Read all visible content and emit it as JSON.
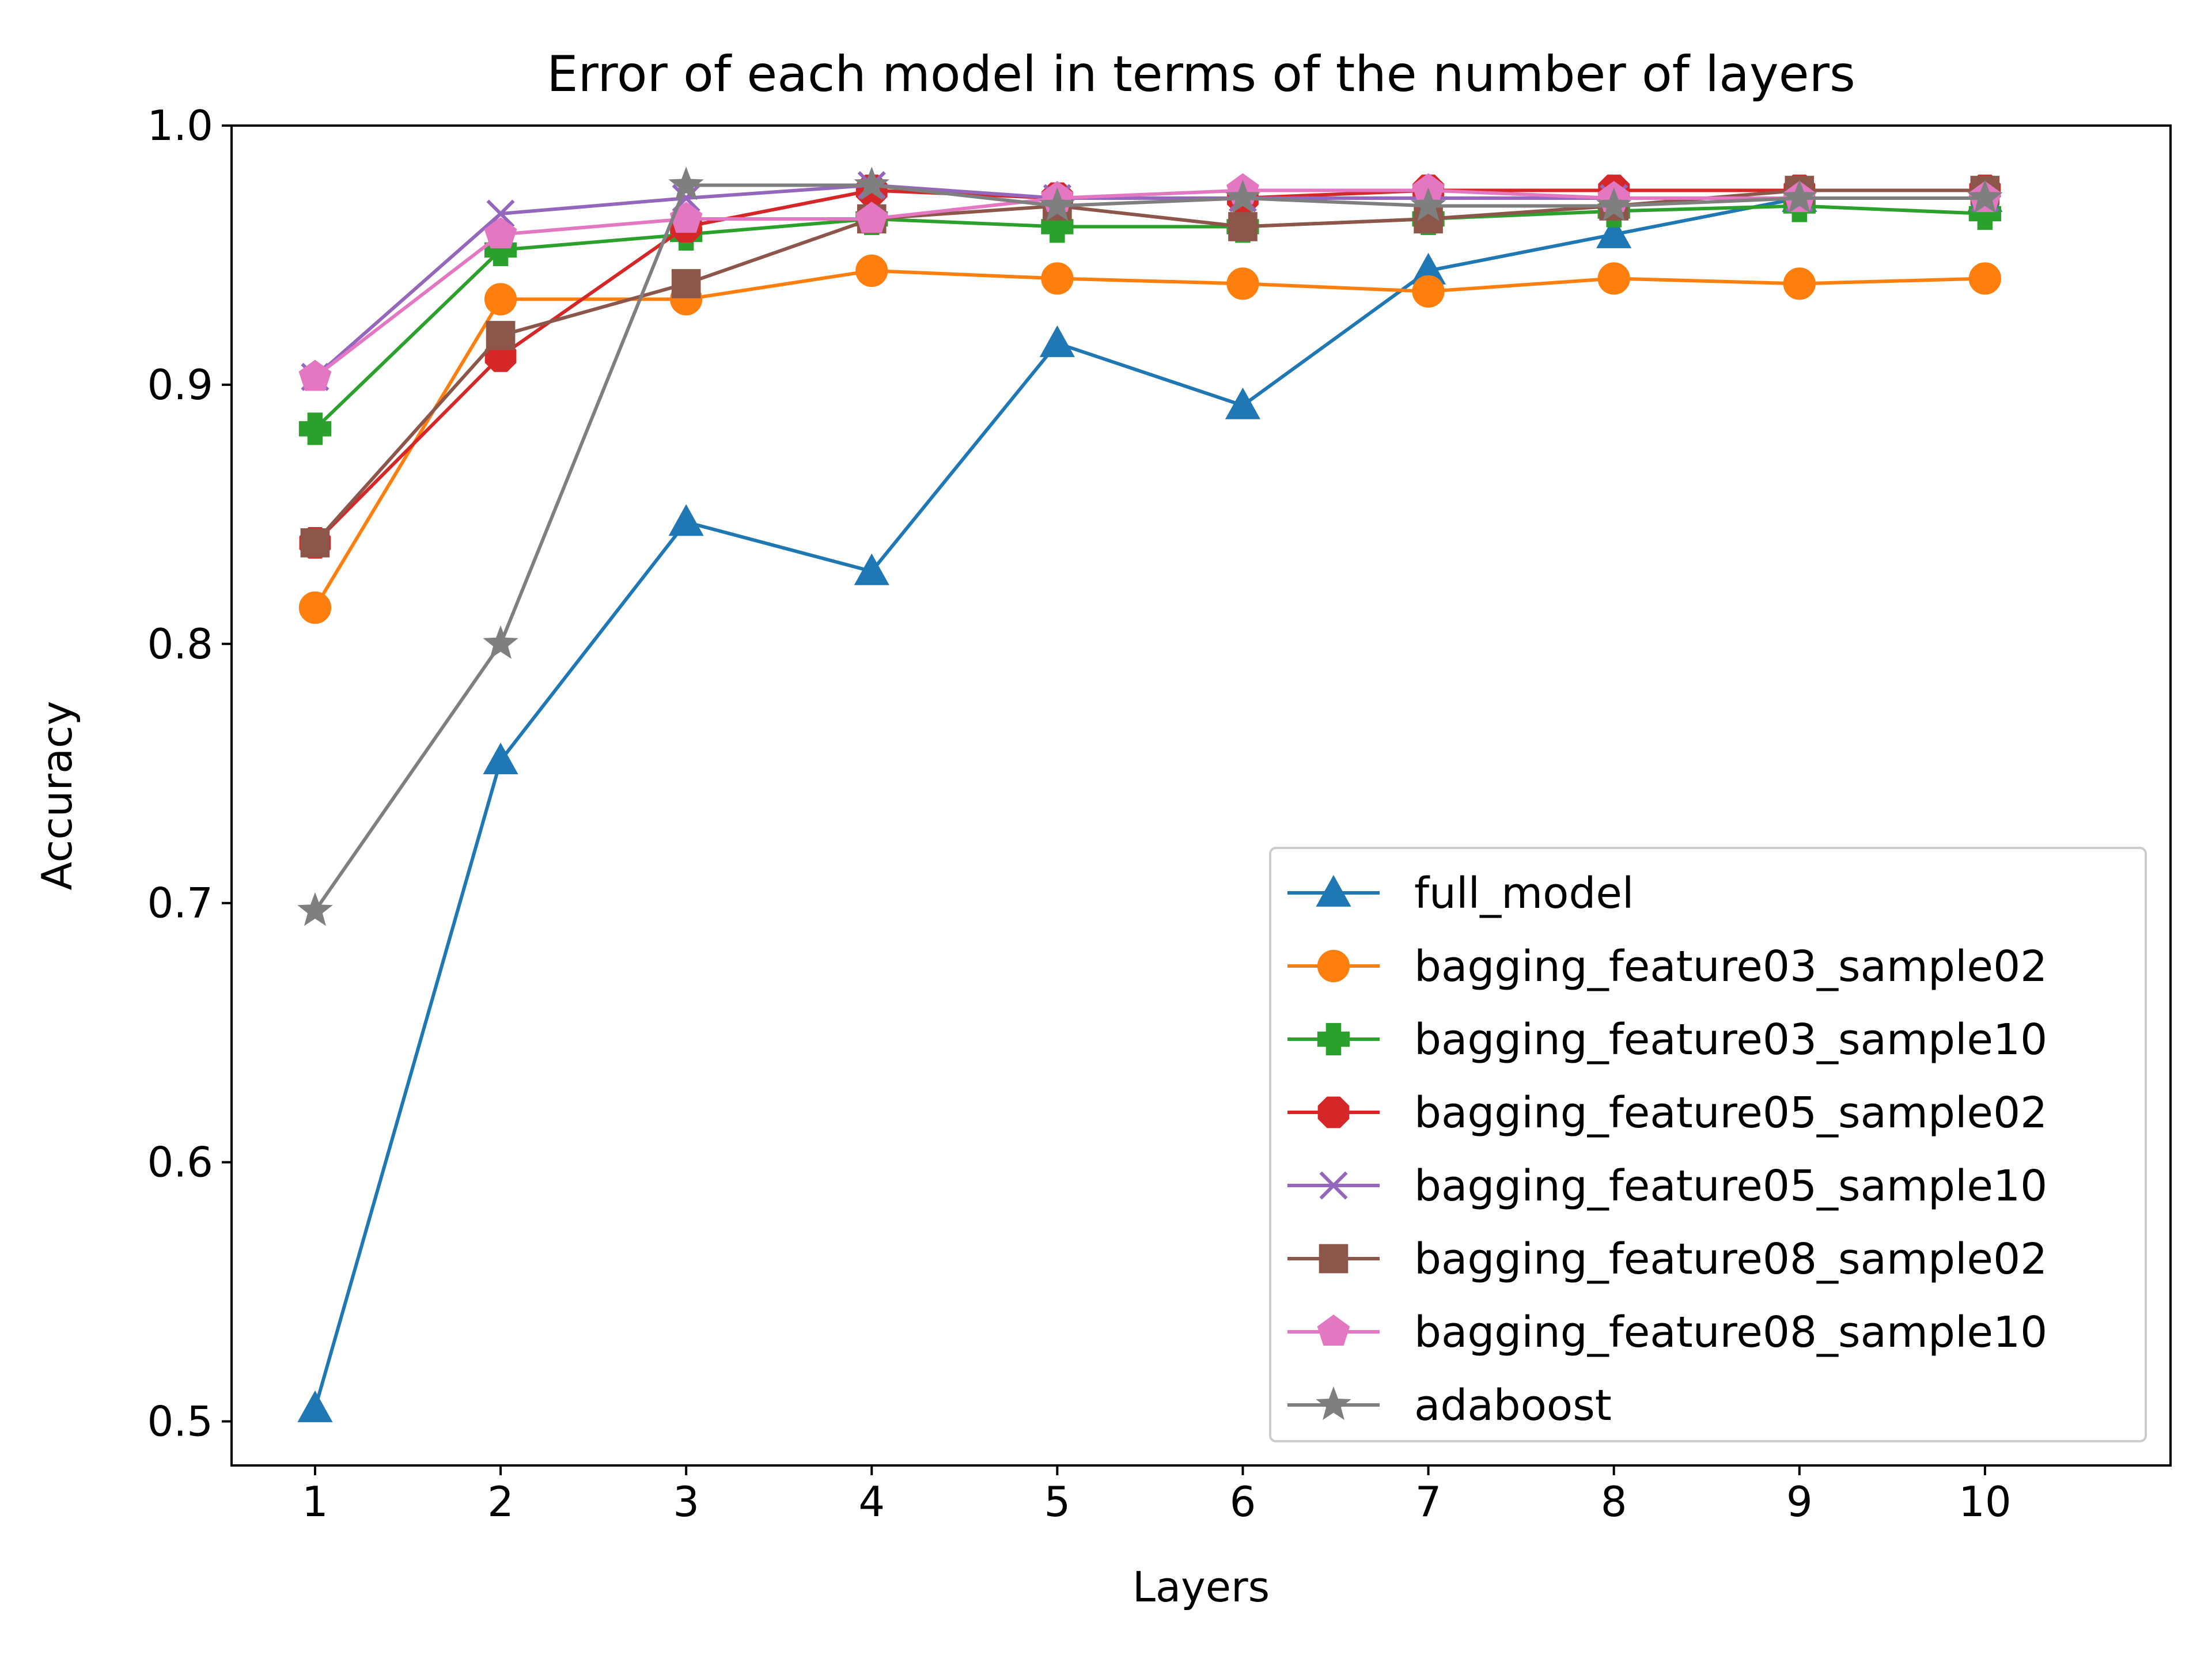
{
  "chart_data": {
    "type": "line",
    "title": "Error of each model in terms of the number of layers",
    "xlabel": "Layers",
    "ylabel": "Accuracy",
    "x": [
      1,
      2,
      3,
      4,
      5,
      6,
      7,
      8,
      9,
      10
    ],
    "xlim": [
      0.55,
      11.0
    ],
    "ylim": [
      0.483,
      1.0
    ],
    "xticks": [
      "1",
      "2",
      "3",
      "4",
      "5",
      "6",
      "7",
      "8",
      "9",
      "10"
    ],
    "yticks": [
      "0.5",
      "0.6",
      "0.7",
      "0.8",
      "0.9",
      "1.0"
    ],
    "grid": false,
    "legend_position": "lower-right",
    "series": [
      {
        "name": "full_model",
        "color": "#1f77b4",
        "marker": "triangle-up",
        "values": [
          0.505,
          0.755,
          0.847,
          0.828,
          0.916,
          0.892,
          0.944,
          0.958,
          0.972,
          0.972
        ]
      },
      {
        "name": "bagging_feature03_sample02",
        "color": "#ff7f0e",
        "marker": "circle",
        "values": [
          0.814,
          0.933,
          0.933,
          0.944,
          0.941,
          0.939,
          0.936,
          0.941,
          0.939,
          0.941
        ]
      },
      {
        "name": "bagging_feature03_sample10",
        "color": "#2ca02c",
        "marker": "plus-filled",
        "values": [
          0.883,
          0.952,
          0.958,
          0.964,
          0.961,
          0.961,
          0.964,
          0.967,
          0.969,
          0.966
        ]
      },
      {
        "name": "bagging_feature05_sample02",
        "color": "#d62728",
        "marker": "octagon",
        "values": [
          0.839,
          0.911,
          0.961,
          0.975,
          0.972,
          0.972,
          0.975,
          0.975,
          0.975,
          0.975
        ]
      },
      {
        "name": "bagging_feature05_sample10",
        "color": "#9467bd",
        "marker": "x",
        "values": [
          0.903,
          0.966,
          0.972,
          0.977,
          0.972,
          0.972,
          0.972,
          0.972,
          0.972,
          0.972
        ]
      },
      {
        "name": "bagging_feature08_sample02",
        "color": "#8c564b",
        "marker": "square",
        "values": [
          0.839,
          0.919,
          0.939,
          0.964,
          0.969,
          0.961,
          0.964,
          0.969,
          0.975,
          0.975
        ]
      },
      {
        "name": "bagging_feature08_sample10",
        "color": "#e377c2",
        "marker": "pentagon",
        "values": [
          0.903,
          0.958,
          0.964,
          0.964,
          0.972,
          0.975,
          0.975,
          0.972,
          0.972,
          0.972
        ]
      },
      {
        "name": "adaboost",
        "color": "#7f7f7f",
        "marker": "star",
        "values": [
          0.697,
          0.8,
          0.977,
          0.977,
          0.969,
          0.972,
          0.969,
          0.969,
          0.972,
          0.972
        ]
      }
    ]
  }
}
